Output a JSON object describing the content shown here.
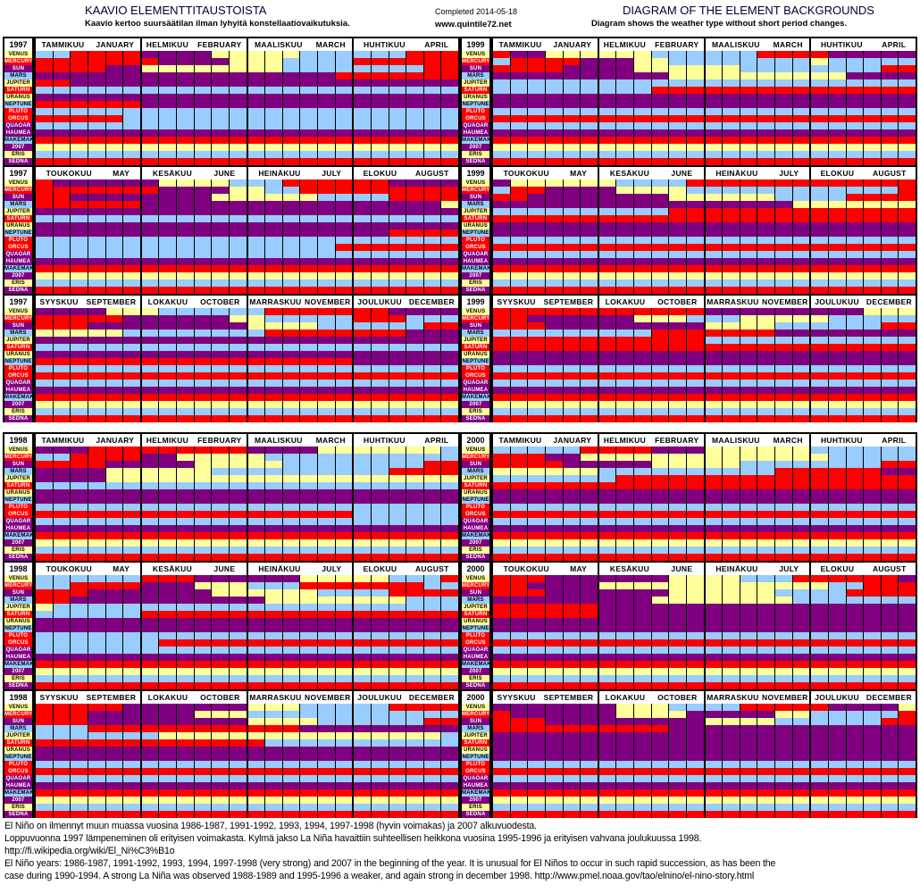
{
  "header": {
    "title_fi": "KAAVIO ELEMENTTITAUSTOISTA",
    "subtitle_fi": "Kaavio kertoo suursäätilan ilman lyhyitä konstellaatiovaikutuksia.",
    "completed": "Completed 2014-05-18",
    "site": "www.quintile72.net",
    "title_en": "DIAGRAM OF THE ELEMENT BACKGROUNDS",
    "subtitle_en": "Diagram shows the weather type without short period changes."
  },
  "chart_data": {
    "type": "heatmap",
    "colors": {
      "R": "#ff0000",
      "P": "#800080",
      "B": "#99ccff",
      "Y": "#ffff99"
    },
    "bodies": [
      {
        "label": "VENUS",
        "bg": "#ffff99",
        "fg": "#000000"
      },
      {
        "label": "MERCURY",
        "bg": "#ff0000",
        "fg": "#ffffff"
      },
      {
        "label": "SUN",
        "bg": "#800080",
        "fg": "#ffffff"
      },
      {
        "label": "MARS",
        "bg": "#99ccff",
        "fg": "#000000"
      },
      {
        "label": "JUPITER",
        "bg": "#ffff99",
        "fg": "#000000"
      },
      {
        "label": "SATURN",
        "bg": "#ff0000",
        "fg": "#ffffff"
      },
      {
        "label": "URANUS",
        "bg": "#ffff99",
        "fg": "#000000"
      },
      {
        "label": "NEPTUNE",
        "bg": "#99ccff",
        "fg": "#000000"
      },
      {
        "label": "PLUTO",
        "bg": "#ff0000",
        "fg": "#ffffff"
      },
      {
        "label": "ORCUS",
        "bg": "#ff0000",
        "fg": "#ffffff"
      },
      {
        "label": "QUAOAR",
        "bg": "#800080",
        "fg": "#ffffff"
      },
      {
        "label": "HAUMEA",
        "bg": "#800080",
        "fg": "#ffffff"
      },
      {
        "label": "MAKEMAKE",
        "bg": "#99ccff",
        "fg": "#000000"
      },
      {
        "label": "2007 OR10",
        "bg": "#800080",
        "fg": "#ffffff"
      },
      {
        "label": "ERIS",
        "bg": "#ffff99",
        "fg": "#000000"
      },
      {
        "label": "SEDNA",
        "bg": "#800080",
        "fg": "#ffffff"
      }
    ],
    "quarters": [
      [
        {
          "fi": "TAMMIKUU",
          "en": "JANUARY"
        },
        {
          "fi": "HELMIKUU",
          "en": "FEBRUARY"
        },
        {
          "fi": "MAALISKUU",
          "en": "MARCH"
        },
        {
          "fi": "HUHTIKUU",
          "en": "APRIL"
        }
      ],
      [
        {
          "fi": "TOUKOKUU",
          "en": "MAY"
        },
        {
          "fi": "KESÄKUU",
          "en": "JUNE"
        },
        {
          "fi": "HEINÄKUU",
          "en": "JULY"
        },
        {
          "fi": "ELOKUU",
          "en": "AUGUST"
        }
      ],
      [
        {
          "fi": "SYYSKUU",
          "en": "SEPTEMBER"
        },
        {
          "fi": "LOKAKUU",
          "en": "OCTOBER"
        },
        {
          "fi": "MARRASKUU",
          "en": "NOVEMBER"
        },
        {
          "fi": "JOULUKUU",
          "en": "DECEMBER"
        }
      ]
    ],
    "panels": [
      {
        "year": "1997",
        "quarter": 0,
        "rows": [
          "BBRRRR PPPPYY YYYBBB BBBRRR",
          "RRRRRR RPPPPY YYBBBB RRRRRR",
          "RRRRPP YYYYYY YYBBBB BBBBRR",
          "PPPPPP PPPPPP PPPPPR RRRRRR",
          "RRPPPP PPPPPP PPPPPP PPPPPP",
          "B",
          "P",
          "RRRRRR PPPPPP PPPPPP PPPPPP",
          "B",
          "RRRRRB BBBBBB BBBBBB BBBBBB",
          "B",
          "P",
          "R",
          "Y",
          "B",
          "R"
        ]
      },
      {
        "year": "1999",
        "quarter": 0,
        "rows": [
          "RPPYYY YYYBBB BBBRRR RPPPPP",
          "BRRRRP PPYYBB BBBBBB YBBBBB",
          "RRRRPP PPYYYY YYBBBB BBBBRR",
          "PPPPPP PPPPYY YYYYYY YYPPPP",
          "B",
          "BBBBBB BBBRRR RRRRRR RRRRRR",
          "P",
          "P",
          "B",
          "R",
          "B",
          "P",
          "R",
          "Y",
          "B",
          "R"
        ]
      },
      {
        "year": "1997",
        "quarter": 1,
        "rows": [
          "RPPPPP PYYYYB BBRRRR RRPPPP",
          "RRRRRR RPPPPY YBBRRR RRRRRR",
          "RRPPPP PPPPYY YYYYBB BBRRRR",
          "RRRRRR PPPPPP PPPPPP PPPPPY",
          "P",
          "B",
          "P",
          "PPPPPP PPPPPP PPPPPP PPRRRR",
          "B",
          "BBBBBB BBBBBB BBBBBR RRRRRR",
          "B",
          "P",
          "R",
          "Y",
          "B",
          "R"
        ]
      },
      {
        "year": "1999",
        "quarter": 1,
        "rows": [
          "PYYYYY YBBBBR RRRRRR RRRRRR",
          "BRRPPP PYYYYB BBBBBB BBBBBR",
          "RRPPPP PPPPYY YYYYBB BBRRRR",
          "PPPPPP PPPPPP PPPPPY YYYYYY",
          "BBBBBB BBBBRR RRRRRR RRRRRR",
          "R",
          "P",
          "P",
          "B",
          "R",
          "B",
          "P",
          "R",
          "Y",
          "B",
          "R"
        ]
      },
      {
        "year": "1997",
        "quarter": 2,
        "rows": [
          "PPPPYY YBBBBB BRRRRR RRPPPP",
          "RRRRRP PPPPPY YBBBBB RRRBBB",
          "RRRPPP PPPPPP YYYYBB BBBBRR",
          "YYYYYB BBBBBB BRRRRR RRRPPP",
          "P",
          "B",
          "P",
          "RRRRRR RRRRRR RRRRRR PPPPPP",
          "B",
          "R",
          "B",
          "P",
          "R",
          "Y",
          "B",
          "R"
        ]
      },
      {
        "year": "1999",
        "quarter": 2,
        "rows": [
          "RRRRRR RRRRRR PPPPPP PPPYYY",
          "RRPPPP PPYYYB BBYYYY YBBBBB",
          "RRRPPP PPPPPP YYYYBB BBBBRR",
          "BBBBBB BBBRRR RRRRPP PPPPPP",
          "RRRRRR RRRRRR BBBBBB BBBBBB",
          "R",
          "P",
          "P",
          "B",
          "R",
          "B",
          "P",
          "R",
          "Y",
          "B",
          "R"
        ]
      },
      {
        "year": "1998",
        "quarter": 0,
        "rows": [
          "PPPRRR RRRRRR PPPPYY YYYYYB",
          "BBRRRR PPYYYY YBBBBB BBBBBB",
          "RRRRPP PPPYYY YYBBBB BBBBRR",
          "PPPPYY YYYYBB BBBBBB BBRRRR",
          "PPPPYY YYYYYY YYYYYY YYYYYY",
          "B",
          "P",
          "P",
          "B",
          "RRRRRR RRRRRR RRRRRR BBBBBB",
          "B",
          "P",
          "R",
          "Y",
          "B",
          "R"
        ]
      },
      {
        "year": "2000",
        "quarter": 0,
        "rows": [
          "BBBBBR RRRPPP YYYYYY BBBBBB",
          "RRRPPY YYYYYY YYYYYY YBBBBB",
          "RRRRPP PPPYYY YYBBBB BBBBRR",
          "YYYYYY BBBBBB BBBBRR RRRRPP",
          "BBBBBB BRRRRR RRRRRR RRRRRR",
          "R",
          "P",
          "P",
          "B",
          "R",
          "B",
          "P",
          "R",
          "Y",
          "B",
          "R"
        ]
      },
      {
        "year": "1998",
        "quarter": 1,
        "rows": [
          "BBBBBB RRRPPP PPPYYY YYBBBR",
          "BBRRRR PPPYYY BBBRRR RRRRBB",
          "RRRPPP PPPPYY YYYYBB BBRRRR",
          "RRPPPP PPPPPP PYYYYY YYYBBB",
          "YBBBBB BBBBBB BBBBBB BBBBBB",
          "BBBBBB RRRRRR RRRRRR RRRRRR",
          "P",
          "P",
          "B",
          "BBBBBB BRRRRR RRRRRR RRRRRR",
          "B",
          "P",
          "R",
          "Y",
          "B",
          "R"
        ]
      },
      {
        "year": "2000",
        "quarter": 1,
        "rows": [
          "RRRPPP PPPPYY YYBBBR RRRRRP",
          "RRPPPP YYYYYY YYYYYY YBBRRR",
          "RRRPPP PPPPYY YYYYBB BBRRRR",
          "PPPPPP PPPYYY YYYYYB BBBBBB",
          "RRRRRR PPPPPP PPPPPP PPPPPP",
          "RRRRRR PPPPPP PPPPPP PPPPPP",
          "P",
          "P",
          "B",
          "R",
          "B",
          "P",
          "R",
          "Y",
          "B",
          "R"
        ]
      },
      {
        "year": "1998",
        "quarter": 2,
        "rows": [
          "RRRRRP PPPPPP YYYBBB BBRRRR",
          "RRRPPP PPPYYY BBBBBB BBBBBB",
          "RRRPPP PPPPPP YYYYBB BBBBRR",
          "BBBRRR RRRRRR RRRPPP PPPPPP",
          "BBBBBB BYYYYY YYYYYY YYYYYB",
          "RRRRRR RRRRRR RBBBBB BBBBBB",
          "P",
          "P",
          "B",
          "R",
          "B",
          "P",
          "R",
          "Y",
          "B",
          "R"
        ]
      },
      {
        "year": "2000",
        "quarter": 2,
        "rows": [
          "PPPPPP PYYYBB BBRRRR RPPPPY",
          "RPPPPP PYYYYP PPPPYY BBBBBR",
          "RRRPPP PPPPPP YYYYBB BBBBRR",
          "RRRRRR RRRRPP PPPPPP PPPPPP",
          "P",
          "P",
          "P",
          "P",
          "B",
          "R",
          "B",
          "P",
          "R",
          "Y",
          "B",
          "R"
        ]
      }
    ]
  },
  "notes": [
    "El Niño on ilmennyt muun muassa vuosina 1986-1987, 1991-1992, 1993, 1994, 1997-1998 (hyvin voimakas) ja 2007 alkuvuodesta.",
    "Loppuvuonna 1997 lämpeneminen oli erityisen voimakasta. Kylmä jakso La Niña havaittiin suhteellisen heikkona vuosina 1995-1996 ja erityisen vahvana joulukuussa 1998.",
    "http://fi.wikipedia.org/wiki/El_Ni%C3%B1o",
    "El Niño years: 1986-1987, 1991-1992, 1993, 1994, 1997-1998 (very strong) and 2007 in the beginning of the year.  It is unusual for El Niños to occur in such rapid succession, as has been the",
    "case during 1990-1994.  A strong La Niña was observed 1988-1989 and 1995-1996 a weaker, and again strong in december 1998.   http://www.pmel.noaa.gov/tao/elnino/el-nino-story.html"
  ]
}
